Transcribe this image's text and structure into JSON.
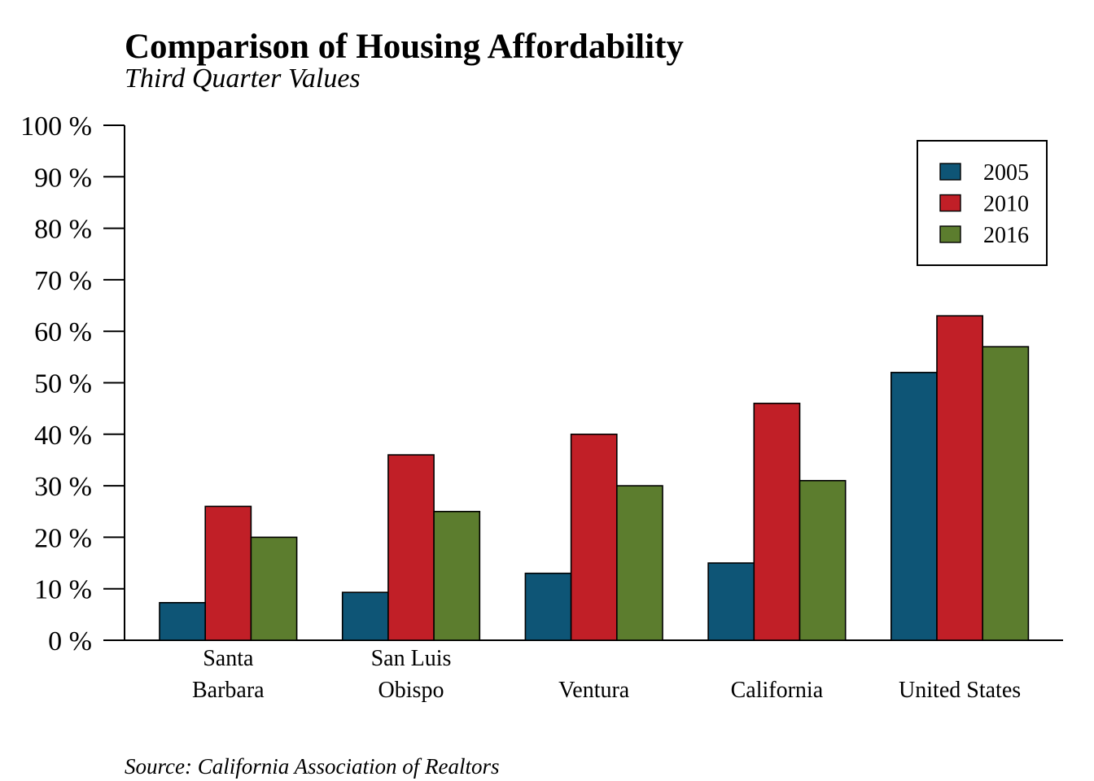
{
  "chart_data": {
    "type": "bar",
    "title": "Comparison of Housing Affordability",
    "subtitle": "Third Quarter Values",
    "source": "Source: California Association of Realtors",
    "categories": [
      [
        "Santa",
        "Barbara"
      ],
      [
        "San Luis",
        "Obispo"
      ],
      [
        "Ventura"
      ],
      [
        "California"
      ],
      [
        "United States"
      ]
    ],
    "series": [
      {
        "name": "2005",
        "color": "#0e5576",
        "values": [
          7.3,
          9.3,
          13,
          15,
          52
        ]
      },
      {
        "name": "2010",
        "color": "#c11f27",
        "values": [
          26,
          36,
          40,
          46,
          63
        ]
      },
      {
        "name": "2016",
        "color": "#5c7d2e",
        "values": [
          20,
          25,
          30,
          31,
          57
        ]
      }
    ],
    "ylim": [
      0,
      100
    ],
    "yticks": [
      0,
      10,
      20,
      30,
      40,
      50,
      60,
      70,
      80,
      90,
      100
    ],
    "ytick_suffix": " %",
    "legend_position": "top-right",
    "grid": false
  }
}
